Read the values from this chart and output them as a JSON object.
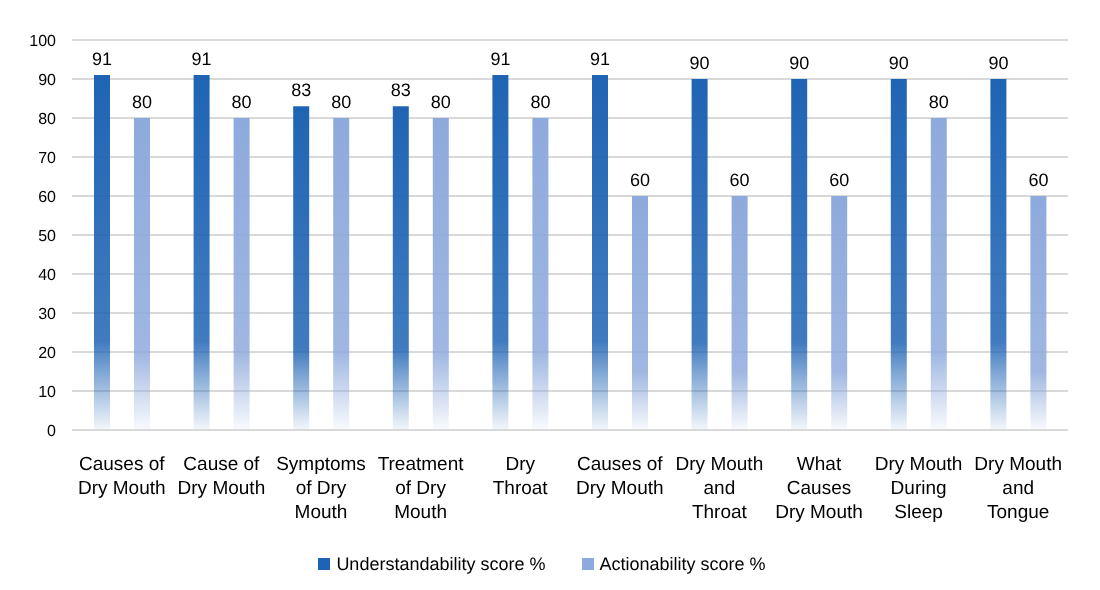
{
  "chart_data": {
    "type": "bar",
    "categories": [
      "Causes of Dry Mouth",
      "Cause of Dry Mouth",
      "Symptoms of Dry Mouth",
      "Treatment of Dry Mouth",
      "Dry Throat",
      "Causes of Dry Mouth",
      "Dry Mouth and Throat",
      "What Causes Dry Mouth",
      "Dry Mouth During Sleep",
      "Dry Mouth and Tongue"
    ],
    "series": [
      {
        "name": "Understandability score %",
        "color": "#1f64b4",
        "values": [
          91,
          91,
          83,
          83,
          91,
          91,
          90,
          90,
          90,
          90
        ]
      },
      {
        "name": "Actionability score %",
        "color": "#8eaadc",
        "values": [
          80,
          80,
          80,
          80,
          80,
          60,
          60,
          60,
          80,
          60
        ]
      }
    ],
    "ylim": [
      0,
      100
    ],
    "yticks": [
      0,
      10,
      20,
      30,
      40,
      50,
      60,
      70,
      80,
      90,
      100
    ],
    "grid": "y",
    "legend": "bottom",
    "data_labels": true
  }
}
